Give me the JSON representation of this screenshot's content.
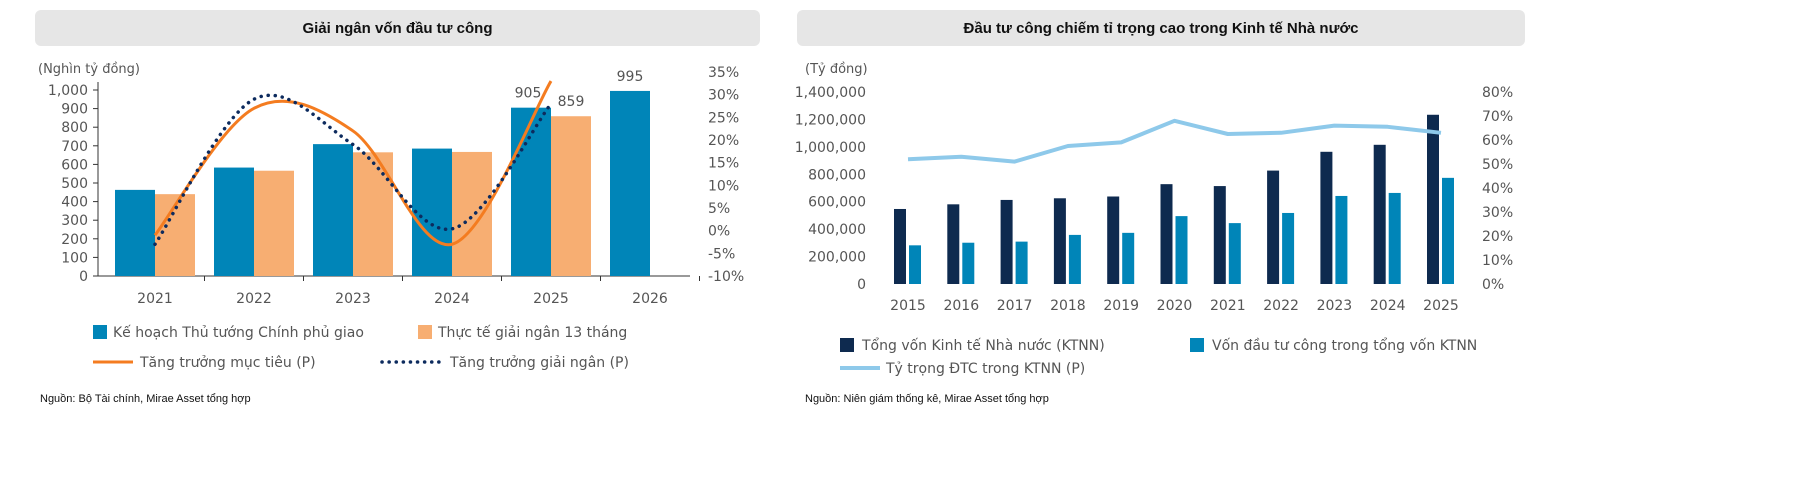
{
  "chart_data": [
    {
      "type": "bar",
      "title": "Giải ngân vốn đầu tư công",
      "ylabel": "(Nghìn tỷ đồng)",
      "ylim": [
        0,
        1000
      ],
      "y2lim": [
        -10,
        35
      ],
      "yticks": [
        "0",
        "100",
        "200",
        "300",
        "400",
        "500",
        "600",
        "700",
        "800",
        "900",
        "1,000"
      ],
      "y2ticks": [
        "-10%",
        "-5%",
        "0%",
        "5%",
        "10%",
        "15%",
        "20%",
        "25%",
        "30%",
        "35%"
      ],
      "categories": [
        "2021",
        "2022",
        "2023",
        "2024",
        "2025",
        "2026"
      ],
      "series": [
        {
          "name": "Kế hoạch Thủ tướng Chính phủ giao",
          "kind": "bar",
          "axis": "left",
          "color": "#0085b8",
          "values": [
            463,
            583,
            709,
            685,
            905,
            995
          ]
        },
        {
          "name": "Thực tế giải ngân 13 tháng",
          "kind": "bar",
          "axis": "left",
          "color": "#f7ae72",
          "values": [
            440,
            566,
            665,
            667,
            859,
            null
          ]
        },
        {
          "name": "Tăng trưởng mục tiêu (P)",
          "kind": "line",
          "axis": "right",
          "color": "#f47c20",
          "values": [
            -1,
            27,
            22,
            -3,
            33,
            null
          ]
        },
        {
          "name": "Tăng trưởng giải ngân (P)",
          "kind": "dotted",
          "axis": "right",
          "color": "#0d2b5e",
          "values": [
            -3,
            29,
            19,
            0.4,
            28,
            null
          ]
        }
      ],
      "data_labels": [
        {
          "category": "2025",
          "series": 0,
          "text": "905"
        },
        {
          "category": "2025",
          "series": 1,
          "text": "859"
        },
        {
          "category": "2026",
          "series": 0,
          "text": "995"
        }
      ],
      "source": "Nguồn: Bộ Tài chính, Mirae Asset tổng hợp"
    },
    {
      "type": "bar",
      "title": "Đầu tư công chiếm tỉ trọng cao trong Kinh tế Nhà nước",
      "ylabel": "(Tỷ đồng)",
      "ylim": [
        0,
        1400000
      ],
      "y2lim": [
        0,
        80
      ],
      "yticks": [
        "0",
        "200,000",
        "400,000",
        "600,000",
        "800,000",
        "1,000,000",
        "1,200,000",
        "1,400,000"
      ],
      "y2ticks": [
        "0%",
        "10%",
        "20%",
        "30%",
        "40%",
        "50%",
        "60%",
        "70%",
        "80%"
      ],
      "categories": [
        "2015",
        "2016",
        "2017",
        "2018",
        "2019",
        "2020",
        "2021",
        "2022",
        "2023",
        "2024",
        "2025"
      ],
      "series": [
        {
          "name": "Tổng vốn Kinh tế Nhà nước (KTNN)",
          "kind": "bar",
          "axis": "left",
          "color": "#0e2a4f",
          "values": [
            547000,
            581000,
            613000,
            625000,
            638000,
            728000,
            714000,
            827000,
            964000,
            1015000,
            1234000
          ]
        },
        {
          "name": "Vốn đầu tư công trong tổng vốn KTNN",
          "kind": "bar",
          "axis": "left",
          "color": "#0085b8",
          "values": [
            282000,
            301000,
            309000,
            358000,
            373000,
            495000,
            444000,
            518000,
            642000,
            664000,
            774000
          ]
        },
        {
          "name": "Tỷ trọng ĐTC trong KTNN (P)",
          "kind": "line",
          "axis": "right",
          "color": "#8ec9ea",
          "values": [
            52,
            53,
            51,
            57.5,
            59,
            68,
            62.5,
            63,
            66,
            65.5,
            63
          ]
        }
      ],
      "source": "Nguồn: Niên giám thống kê, Mirae Asset tổng hợp"
    }
  ]
}
